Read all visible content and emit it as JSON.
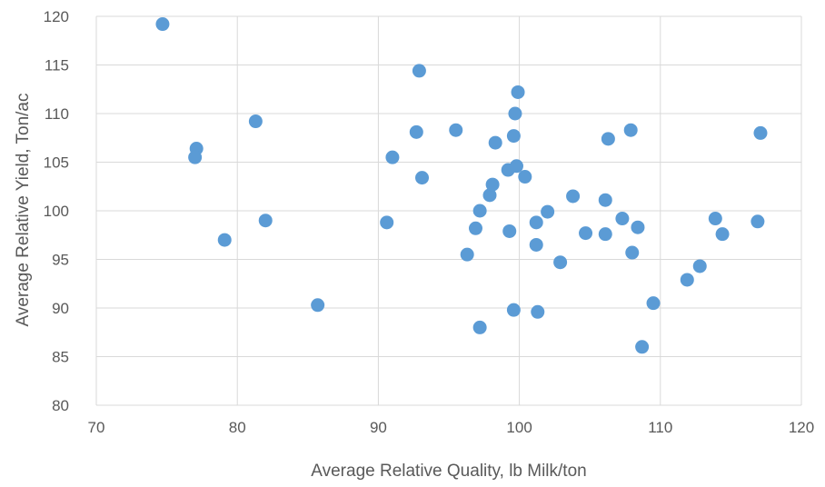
{
  "chart_data": {
    "type": "scatter",
    "title": "",
    "xlabel": "Average Relative Quality, lb Milk/ton",
    "ylabel": "Average Relative Yield, Ton/ac",
    "xlim": [
      70,
      120
    ],
    "ylim": [
      80,
      120
    ],
    "xticks": [
      70,
      80,
      90,
      100,
      110,
      120
    ],
    "yticks": [
      80,
      85,
      90,
      95,
      100,
      105,
      110,
      115,
      120
    ],
    "grid": true,
    "legend": "none",
    "point_color": "#5b9bd5",
    "series": [
      {
        "points": [
          [
            74.7,
            119.2
          ],
          [
            77.1,
            106.4
          ],
          [
            77.0,
            105.5
          ],
          [
            79.1,
            97.0
          ],
          [
            81.3,
            109.2
          ],
          [
            82.0,
            99.0
          ],
          [
            85.7,
            90.3
          ],
          [
            90.6,
            98.8
          ],
          [
            91.0,
            105.5
          ],
          [
            92.7,
            108.1
          ],
          [
            92.9,
            114.4
          ],
          [
            93.1,
            103.4
          ],
          [
            95.5,
            108.3
          ],
          [
            96.3,
            95.5
          ],
          [
            96.9,
            98.2
          ],
          [
            97.2,
            100.0
          ],
          [
            97.2,
            88.0
          ],
          [
            97.9,
            101.6
          ],
          [
            98.1,
            102.7
          ],
          [
            98.3,
            107.0
          ],
          [
            99.2,
            104.2
          ],
          [
            99.3,
            97.9
          ],
          [
            99.6,
            107.7
          ],
          [
            99.7,
            110.0
          ],
          [
            99.8,
            104.6
          ],
          [
            99.9,
            112.2
          ],
          [
            99.6,
            89.8
          ],
          [
            100.4,
            103.5
          ],
          [
            101.2,
            98.8
          ],
          [
            101.2,
            96.5
          ],
          [
            101.3,
            89.6
          ],
          [
            102.0,
            99.9
          ],
          [
            102.9,
            94.7
          ],
          [
            103.8,
            101.5
          ],
          [
            104.7,
            97.7
          ],
          [
            106.1,
            101.1
          ],
          [
            106.1,
            97.6
          ],
          [
            106.3,
            107.4
          ],
          [
            107.3,
            99.2
          ],
          [
            107.9,
            108.3
          ],
          [
            108.0,
            95.7
          ],
          [
            108.4,
            98.3
          ],
          [
            108.7,
            86.0
          ],
          [
            109.5,
            90.5
          ],
          [
            111.9,
            92.9
          ],
          [
            112.8,
            94.3
          ],
          [
            113.9,
            99.2
          ],
          [
            114.4,
            97.6
          ],
          [
            116.9,
            98.9
          ],
          [
            117.1,
            108.0
          ]
        ]
      }
    ]
  }
}
